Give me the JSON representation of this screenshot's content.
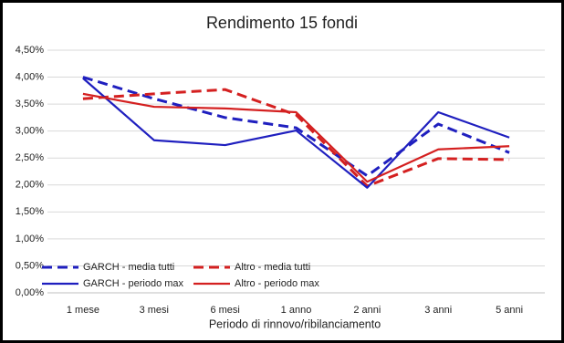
{
  "chart_data": {
    "type": "line",
    "title": "Rendimento 15 fondi",
    "x_label": "Periodo di rinnovo/ribilanciamento",
    "categories": [
      "1 mese",
      "3 mesi",
      "6 mesi",
      "1 anno",
      "2 anni",
      "3 anni",
      "5 anni"
    ],
    "series": [
      {
        "name": "GARCH - media tutti",
        "color": "#1f1fbf",
        "dashed": true,
        "values": [
          4.0,
          3.6,
          3.25,
          3.06,
          2.17,
          3.13,
          2.6
        ]
      },
      {
        "name": "Altro - media tutti",
        "color": "#d42020",
        "dashed": true,
        "values": [
          3.6,
          3.69,
          3.77,
          3.3,
          1.98,
          2.49,
          2.47
        ]
      },
      {
        "name": "GARCH - periodo max",
        "color": "#1f1fbf",
        "dashed": false,
        "values": [
          3.98,
          2.83,
          2.74,
          3.01,
          1.95,
          3.35,
          2.88
        ]
      },
      {
        "name": "Altro - periodo max",
        "color": "#d42020",
        "dashed": false,
        "values": [
          3.69,
          3.45,
          3.42,
          3.35,
          2.06,
          2.66,
          2.72
        ]
      }
    ],
    "ylim": [
      0,
      4.5
    ],
    "yticks": [
      {
        "value": 0,
        "label": "0,00%"
      },
      {
        "value": 0.5,
        "label": "0,50%"
      },
      {
        "value": 1,
        "label": "1,00%"
      },
      {
        "value": 1.5,
        "label": "1,50%"
      },
      {
        "value": 2,
        "label": "2,00%"
      },
      {
        "value": 2.5,
        "label": "2,50%"
      },
      {
        "value": 3,
        "label": "3,00%"
      },
      {
        "value": 3.5,
        "label": "3,50%"
      },
      {
        "value": 4,
        "label": "4,00%"
      },
      {
        "value": 4.5,
        "label": "4,50%"
      }
    ],
    "grid": true,
    "legend": "lower left"
  }
}
